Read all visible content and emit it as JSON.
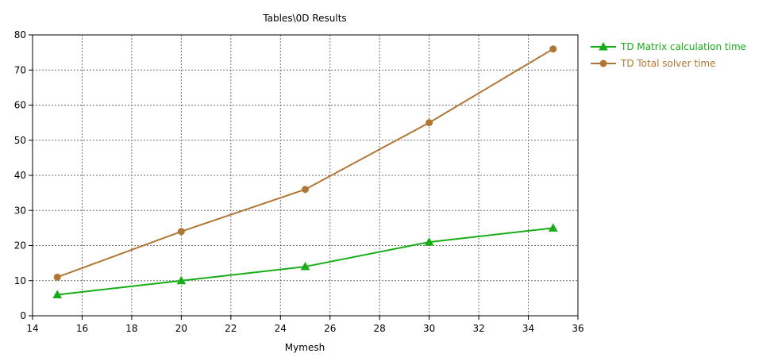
{
  "chart_data": {
    "type": "line",
    "title": "Tables\\0D Results",
    "xlabel": "Mymesh",
    "ylabel": "",
    "xlim": [
      14,
      36
    ],
    "ylim": [
      0,
      80
    ],
    "x_ticks": [
      14,
      16,
      18,
      20,
      22,
      24,
      26,
      28,
      30,
      32,
      34,
      36
    ],
    "y_ticks": [
      0,
      10,
      20,
      30,
      40,
      50,
      60,
      70,
      80
    ],
    "grid": true,
    "legend_position": "right",
    "series": [
      {
        "name": "TD Matrix calculation time",
        "color": "#16ad16",
        "marker": "triangle",
        "x": [
          15,
          20,
          25,
          30,
          35
        ],
        "y": [
          6,
          10,
          14,
          21,
          25
        ]
      },
      {
        "name": "TD Total solver time",
        "color": "#b07734",
        "marker": "circle",
        "x": [
          15,
          20,
          25,
          30,
          35
        ],
        "y": [
          11,
          24,
          36,
          55,
          76
        ]
      }
    ]
  }
}
